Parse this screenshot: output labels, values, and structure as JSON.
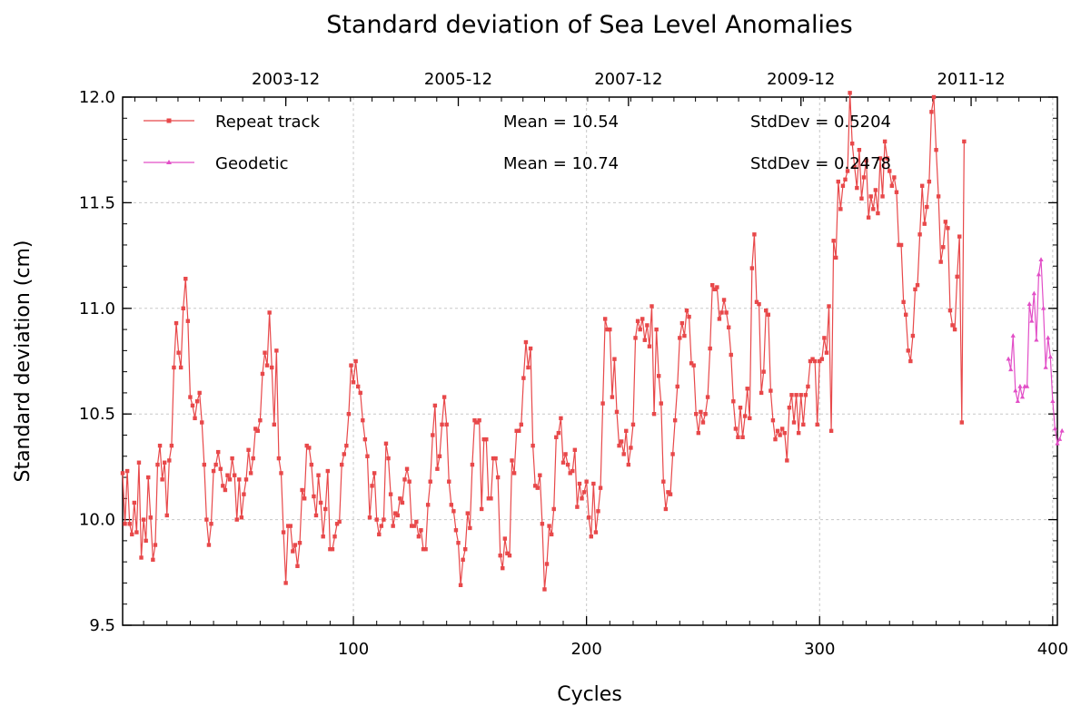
{
  "chart_data": {
    "type": "line",
    "title": "Standard deviation of Sea Level Anomalies",
    "xlabel": "Cycles",
    "ylabel": "Standard deviation (cm)",
    "xlim": [
      1,
      402
    ],
    "ylim": [
      9.5,
      12.0
    ],
    "grid": true,
    "legend_position": "top-left",
    "x_ticks": [
      100,
      200,
      300,
      400
    ],
    "y_ticks": [
      "9.5",
      "10.0",
      "10.5",
      "11.0",
      "11.5",
      "12.0"
    ],
    "top_axis_ticks": [
      {
        "cycle": 71,
        "label": "2003-12"
      },
      {
        "cycle": 145,
        "label": "2005-12"
      },
      {
        "cycle": 218,
        "label": "2007-12"
      },
      {
        "cycle": 292,
        "label": "2009-12"
      },
      {
        "cycle": 365,
        "label": "2011-12"
      }
    ],
    "series": [
      {
        "name": "Repeat track",
        "mean_text": "Mean = 10.54",
        "stddev_text": "StdDev = 0.5204",
        "color": "#e8484a",
        "marker": "square",
        "x_start": 1,
        "values": [
          10.22,
          9.98,
          10.23,
          9.98,
          9.93,
          10.08,
          9.94,
          10.27,
          9.82,
          10.0,
          9.9,
          10.2,
          10.01,
          9.81,
          9.88,
          10.26,
          10.35,
          10.19,
          10.27,
          10.02,
          10.28,
          10.35,
          10.72,
          10.93,
          10.79,
          10.72,
          11.0,
          11.14,
          10.94,
          10.58,
          10.54,
          10.48,
          10.56,
          10.6,
          10.46,
          10.26,
          10.0,
          9.88,
          9.98,
          10.23,
          10.26,
          10.32,
          10.24,
          10.16,
          10.14,
          10.21,
          10.19,
          10.29,
          10.21,
          10.0,
          10.19,
          10.01,
          10.12,
          10.19,
          10.33,
          10.22,
          10.29,
          10.43,
          10.42,
          10.47,
          10.69,
          10.79,
          10.73,
          10.98,
          10.72,
          10.45,
          10.8,
          10.29,
          10.22,
          9.94,
          9.7,
          9.97,
          9.97,
          9.85,
          9.88,
          9.78,
          9.89,
          10.14,
          10.1,
          10.35,
          10.34,
          10.26,
          10.11,
          10.02,
          10.21,
          10.08,
          9.92,
          10.05,
          10.23,
          9.86,
          9.86,
          9.92,
          9.98,
          9.99,
          10.26,
          10.31,
          10.35,
          10.5,
          10.73,
          10.65,
          10.75,
          10.63,
          10.6,
          10.47,
          10.38,
          10.3,
          10.01,
          10.16,
          10.22,
          10.0,
          9.93,
          9.97,
          10.0,
          10.36,
          10.29,
          10.12,
          9.97,
          10.03,
          10.02,
          10.1,
          10.08,
          10.19,
          10.24,
          10.18,
          9.97,
          9.97,
          9.99,
          9.92,
          9.95,
          9.86,
          9.86,
          10.07,
          10.18,
          10.4,
          10.54,
          10.24,
          10.3,
          10.45,
          10.58,
          10.45,
          10.18,
          10.07,
          10.04,
          9.95,
          9.89,
          9.69,
          9.81,
          9.86,
          10.03,
          9.96,
          10.26,
          10.47,
          10.46,
          10.47,
          10.05,
          10.38,
          10.38,
          10.1,
          10.1,
          10.29,
          10.29,
          10.2,
          9.83,
          9.77,
          9.91,
          9.84,
          9.83,
          10.28,
          10.22,
          10.42,
          10.42,
          10.45,
          10.67,
          10.84,
          10.72,
          10.81,
          10.35,
          10.16,
          10.15,
          10.21,
          9.98,
          9.67,
          9.79,
          9.97,
          9.93,
          10.05,
          10.39,
          10.41,
          10.48,
          10.27,
          10.31,
          10.26,
          10.22,
          10.23,
          10.33,
          10.06,
          10.17,
          10.1,
          10.13,
          10.18,
          10.01,
          9.92,
          10.17,
          9.94,
          10.04,
          10.15,
          10.55,
          10.95,
          10.9,
          10.9,
          10.58,
          10.76,
          10.51,
          10.35,
          10.37,
          10.31,
          10.42,
          10.26,
          10.34,
          10.45,
          10.86,
          10.94,
          10.9,
          10.95,
          10.85,
          10.92,
          10.82,
          11.01,
          10.5,
          10.9,
          10.68,
          10.55,
          10.18,
          10.05,
          10.13,
          10.12,
          10.31,
          10.47,
          10.63,
          10.86,
          10.93,
          10.87,
          10.99,
          10.96,
          10.74,
          10.73,
          10.5,
          10.41,
          10.51,
          10.46,
          10.5,
          10.58,
          10.81,
          11.11,
          11.09,
          11.1,
          10.95,
          10.98,
          11.04,
          10.98,
          10.91,
          10.78,
          10.56,
          10.43,
          10.39,
          10.53,
          10.39,
          10.49,
          10.62,
          10.48,
          11.19,
          11.35,
          11.03,
          11.02,
          10.6,
          10.7,
          10.99,
          10.97,
          10.61,
          10.47,
          10.38,
          10.42,
          10.4,
          10.43,
          10.41,
          10.28,
          10.53,
          10.59,
          10.46,
          10.59,
          10.41,
          10.59,
          10.45,
          10.59,
          10.63,
          10.75,
          10.76,
          10.75,
          10.45,
          10.75,
          10.76,
          10.86,
          10.79,
          11.01,
          10.42,
          11.32,
          11.24,
          11.6,
          11.47,
          11.58,
          11.61,
          11.65,
          12.02,
          11.78,
          11.67,
          11.57,
          11.75,
          11.52,
          11.62,
          11.7,
          11.43,
          11.53,
          11.47,
          11.56,
          11.45,
          11.71,
          11.53,
          11.79,
          11.71,
          11.65,
          11.58,
          11.62,
          11.55,
          11.3,
          11.3,
          11.03,
          10.97,
          10.8,
          10.75,
          10.87,
          11.09,
          11.11,
          11.35,
          11.58,
          11.4,
          11.48,
          11.6,
          11.93,
          12.0,
          11.75,
          11.53,
          11.22,
          11.29,
          11.41,
          11.38,
          10.99,
          10.92,
          10.9,
          11.15,
          11.34,
          10.46,
          11.79
        ]
      },
      {
        "name": "Geodetic",
        "mean_text": "Mean = 10.74",
        "stddev_text": "StdDev = 0.2478",
        "color": "#e24fc7",
        "marker": "triangle",
        "x_start": 381,
        "values": [
          10.76,
          10.71,
          10.87,
          10.61,
          10.56,
          10.63,
          10.58,
          10.63,
          10.63,
          11.02,
          10.94,
          11.07,
          10.85,
          11.16,
          11.23,
          11.0,
          10.72,
          10.86,
          10.77,
          10.56,
          10.43,
          10.36,
          10.38,
          10.42
        ]
      }
    ]
  }
}
